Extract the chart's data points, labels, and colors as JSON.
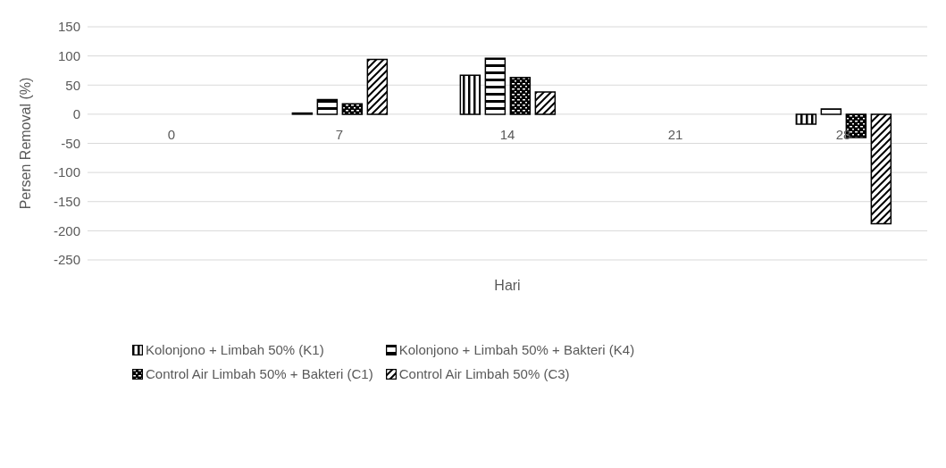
{
  "chart_data": {
    "type": "bar",
    "xlabel": "Hari",
    "ylabel": "Persen Removal (%)",
    "categories": [
      "0",
      "7",
      "14",
      "21",
      "28"
    ],
    "series": [
      {
        "name": "Kolonjono + Limbah 50% (K1)",
        "color": "#000000",
        "values": [
          0,
          2,
          67,
          0,
          -17
        ]
      },
      {
        "name": "Kolonjono + Limbah 50% + Bakteri (K4)",
        "color": "#000000",
        "values": [
          0,
          25,
          96,
          0,
          9
        ]
      },
      {
        "name": "Control Air Limbah 50% + Bakteri (C1)",
        "color": "#000000",
        "values": [
          0,
          18,
          63,
          0,
          -40
        ]
      },
      {
        "name": "Control Air Limbah 50% (C3)",
        "color": "#000000",
        "values": [
          0,
          94,
          38,
          0,
          -188
        ]
      }
    ],
    "ylim": [
      -250,
      150
    ],
    "yticks": [
      -250,
      -200,
      -150,
      -100,
      -50,
      0,
      50,
      100,
      150
    ],
    "grid": "y",
    "legend": "bottom"
  }
}
